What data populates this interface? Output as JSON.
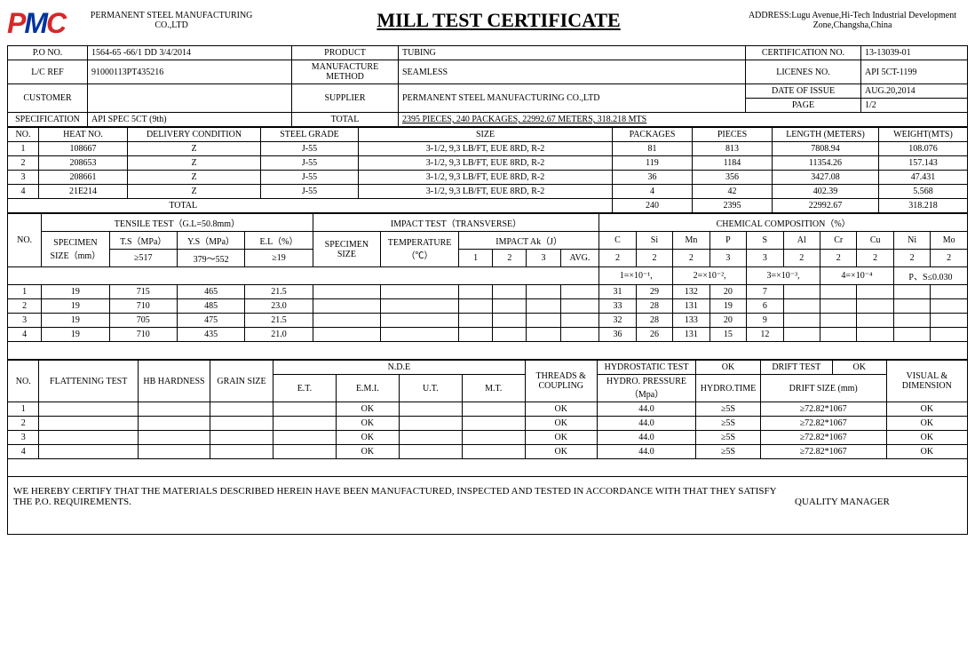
{
  "header": {
    "company": "PERMANENT STEEL MANUFACTURING CO.,LTD",
    "title": "MILL TEST CERTIFICATE",
    "address": "ADDRESS:Lugu Avenue,Hi-Tech Industrial Development Zone,Changsha,China"
  },
  "info": {
    "po_no_lbl": "P.O NO.",
    "po_no": "1564-65 -66/1 DD 3/4/2014",
    "product_lbl": "PRODUCT",
    "product": "TUBING",
    "cert_no_lbl": "CERTIFICATION NO.",
    "cert_no": "13-13039-01",
    "lc_lbl": "L/C REF",
    "lc": "91000113PT435216",
    "mfg_method_lbl": "MANUFACTURE METHOD",
    "mfg_method": "SEAMLESS",
    "license_lbl": "LICENES NO.",
    "license": "API 5CT-1199",
    "customer_lbl": "CUSTOMER",
    "customer": "",
    "supplier_lbl": "SUPPLIER",
    "supplier": "PERMANENT STEEL MANUFACTURING CO.,LTD",
    "date_issue_lbl": "DATE OF ISSUE",
    "date_issue": "AUG.20,2014",
    "page_lbl": "PAGE",
    "page": "1/2",
    "spec_lbl": "SPECIFICATION",
    "spec": "API SPEC 5CT (9th)",
    "total_lbl": "TOTAL",
    "total": "2395 PIECES, 240 PACKAGES, 22992.67 METERS, 318.218 MTS"
  },
  "main_table": {
    "headers": {
      "no": "NO.",
      "heat": "HEAT NO.",
      "deliv": "DELIVERY CONDITION",
      "grade": "STEEL GRADE",
      "size": "SIZE",
      "pkg": "PACKAGES",
      "pcs": "PIECES",
      "length": "LENGTH (METERS)",
      "weight": "WEIGHT(MTS)"
    },
    "rows": [
      {
        "no": "1",
        "heat": "108667",
        "deliv": "Z",
        "grade": "J-55",
        "size": "3-1/2, 9,3 LB/FT, EUE 8RD, R-2",
        "pkg": "81",
        "pcs": "813",
        "length": "7808.94",
        "weight": "108.076"
      },
      {
        "no": "2",
        "heat": "208653",
        "deliv": "Z",
        "grade": "J-55",
        "size": "3-1/2, 9,3 LB/FT, EUE 8RD, R-2",
        "pkg": "119",
        "pcs": "1184",
        "length": "11354.26",
        "weight": "157.143"
      },
      {
        "no": "3",
        "heat": "208661",
        "deliv": "Z",
        "grade": "J-55",
        "size": "3-1/2, 9,3 LB/FT, EUE 8RD, R-2",
        "pkg": "36",
        "pcs": "356",
        "length": "3427.08",
        "weight": "47.431"
      },
      {
        "no": "4",
        "heat": "21E214",
        "deliv": "Z",
        "grade": "J-55",
        "size": "3-1/2, 9,3 LB/FT, EUE 8RD, R-2",
        "pkg": "4",
        "pcs": "42",
        "length": "402.39",
        "weight": "5.568"
      }
    ],
    "total_lbl": "TOTAL",
    "totals": {
      "pkg": "240",
      "pcs": "2395",
      "length": "22992.67",
      "weight": "318.218"
    }
  },
  "tensile": {
    "group_lbl": "TENSILE TEST（G.L=50.8mm）",
    "impact_lbl": "IMPACT TEST（TRANSVERSE）",
    "chem_lbl": "CHEMICAL COMPOSITION（%）",
    "headers": {
      "no": "NO.",
      "spec": "SPECIMEN SIZE（mm）",
      "ts": "T.S（MPa）",
      "ys": "Y.S（MPa）",
      "el": "E.L（%）",
      "isize": "SPECIMEN SIZE",
      "temp": "TEMPERATURE（℃）",
      "impact": "IMPACT Ak（J）",
      "avg": "AVG.",
      "c": "C",
      "si": "Si",
      "mn": "Mn",
      "p": "P",
      "s": "S",
      "al": "Al",
      "cr": "Cr",
      "cu": "Cu",
      "ni": "Ni",
      "mo": "Mo"
    },
    "spec_row": {
      "ts": "≥517",
      "ys": "379～552",
      "el": "≥19"
    },
    "chem_prec": {
      "c": "2",
      "si": "2",
      "mn": "2",
      "p": "3",
      "s": "3",
      "al": "2",
      "cr": "2",
      "cu": "2",
      "ni": "2",
      "mo": "2"
    },
    "chem_note1": "1=×10⁻¹,",
    "chem_note2": "2=×10⁻²,",
    "chem_note3": "3=×10⁻³,",
    "chem_note4": "4=×10⁻⁴",
    "chem_note5": "P、S≤0.030",
    "rows": [
      {
        "no": "1",
        "spec": "19",
        "ts": "715",
        "ys": "465",
        "el": "21.5",
        "c": "31",
        "si": "29",
        "mn": "132",
        "p": "20",
        "s": "7"
      },
      {
        "no": "2",
        "spec": "19",
        "ts": "710",
        "ys": "485",
        "el": "23.0",
        "c": "33",
        "si": "28",
        "mn": "131",
        "p": "19",
        "s": "6"
      },
      {
        "no": "3",
        "spec": "19",
        "ts": "705",
        "ys": "475",
        "el": "21.5",
        "c": "32",
        "si": "28",
        "mn": "133",
        "p": "20",
        "s": "9"
      },
      {
        "no": "4",
        "spec": "19",
        "ts": "710",
        "ys": "435",
        "el": "21.0",
        "c": "36",
        "si": "26",
        "mn": "131",
        "p": "15",
        "s": "12"
      }
    ]
  },
  "nde": {
    "headers": {
      "no": "NO.",
      "flat": "FLATTENING TEST",
      "hb": "HB HARDNESS",
      "grain": "GRAIN SIZE",
      "nde": "N.D.E",
      "et": "E.T.",
      "emi": "E.M.I.",
      "ut": "U.T.",
      "mt": "M.T.",
      "tc": "THREADS & COUPLING",
      "hydro": "HYDROSTATIC TEST",
      "hydro_ok": "OK",
      "drift": "DRIFT TEST",
      "drift_ok": "OK",
      "visual": "VISUAL & DIMENSION",
      "hpress": "HYDRO. PRESSURE（Mpa）",
      "htime": "HYDRO.TIME",
      "dsize": "DRIFT SIZE (mm)"
    },
    "rows": [
      {
        "no": "1",
        "emi": "OK",
        "tc": "OK",
        "hpress": "44.0",
        "htime": "≥5S",
        "dsize": "≥72.82*1067",
        "visual": "OK"
      },
      {
        "no": "2",
        "emi": "OK",
        "tc": "OK",
        "hpress": "44.0",
        "htime": "≥5S",
        "dsize": "≥72.82*1067",
        "visual": "OK"
      },
      {
        "no": "3",
        "emi": "OK",
        "tc": "OK",
        "hpress": "44.0",
        "htime": "≥5S",
        "dsize": "≥72.82*1067",
        "visual": "OK"
      },
      {
        "no": "4",
        "emi": "OK",
        "tc": "OK",
        "hpress": "44.0",
        "htime": "≥5S",
        "dsize": "≥72.82*1067",
        "visual": "OK"
      }
    ]
  },
  "cert": {
    "text": "WE HEREBY CERTIFY THAT THE MATERIALS DESCRIBED HEREIN HAVE BEEN MANUFACTURED, INSPECTED AND TESTED IN ACCORDANCE WITH THAT THEY SATISFY THE P.O. REQUIREMENTS.",
    "qm": "QUALITY MANAGER"
  }
}
